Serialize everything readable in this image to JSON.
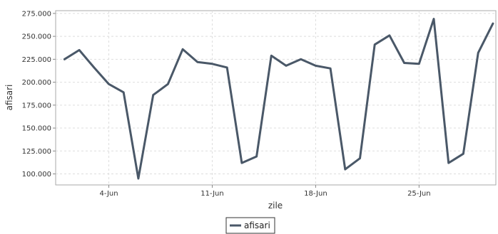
{
  "chart_data": {
    "type": "line",
    "xlabel": "zile",
    "ylabel": "afisari",
    "ylim": [
      88000,
      278000
    ],
    "y_ticks": [
      100000,
      125000,
      150000,
      175000,
      200000,
      225000,
      250000,
      275000
    ],
    "y_tick_labels": [
      "100.000",
      "125.000",
      "150.000",
      "175.000",
      "200.000",
      "225.000",
      "250.000",
      "275.000"
    ],
    "x_ticks": [
      4,
      11,
      18,
      25
    ],
    "x_tick_labels": [
      "4-Jun",
      "11-Jun",
      "18-Jun",
      "25-Jun"
    ],
    "x": [
      1,
      2,
      3,
      4,
      5,
      6,
      7,
      8,
      9,
      10,
      11,
      12,
      13,
      14,
      15,
      16,
      17,
      18,
      19,
      20,
      21,
      22,
      23,
      24,
      25,
      26,
      27,
      28,
      29,
      30
    ],
    "series": [
      {
        "name": "afisari",
        "color": "#4a5868",
        "values": [
          225000,
          235000,
          216000,
          198000,
          189000,
          95000,
          186000,
          198000,
          236000,
          222000,
          220000,
          216000,
          112000,
          119000,
          229000,
          218000,
          225000,
          218000,
          215000,
          105000,
          117000,
          241000,
          251000,
          221000,
          220000,
          269000,
          112000,
          122000,
          232000,
          264000
        ]
      }
    ],
    "grid": true,
    "legend_position": "bottom-center"
  }
}
